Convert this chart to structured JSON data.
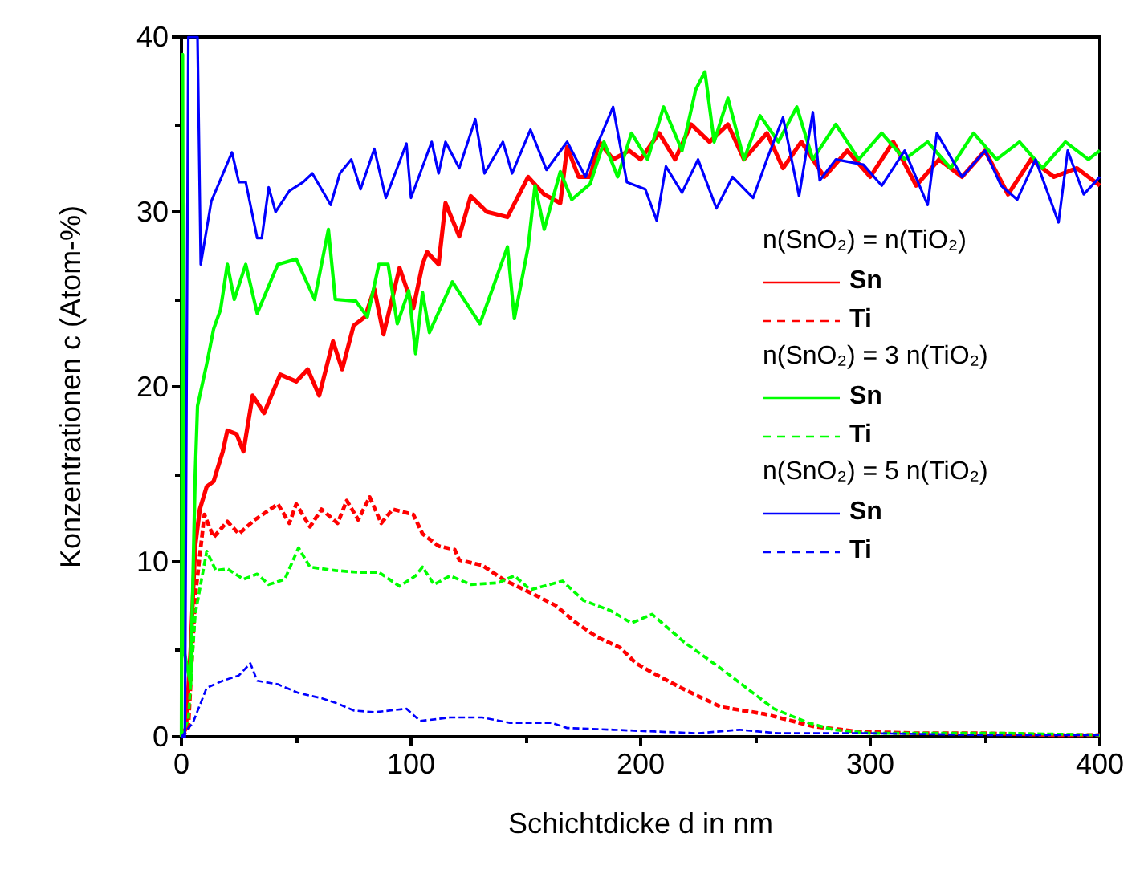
{
  "chart_data": {
    "type": "line",
    "xlabel": "Schichtdicke d in nm",
    "ylabel": "Konzentrationen c (Atom-%)",
    "xlim": [
      0,
      400
    ],
    "xticks": [
      0,
      100,
      200,
      300,
      400
    ],
    "ylim": [
      0,
      40
    ],
    "yticks": [
      0,
      10,
      20,
      30,
      40
    ],
    "grid": false,
    "legend": "right",
    "marker": "none",
    "annotations": [
      "n(SnO₂) = n(TiO₂)",
      "n(SnO₂) = 3 n(TiO₂)",
      "n(SnO₂) = 5 n(TiO₂)"
    ],
    "series": [
      {
        "name": "Sn",
        "color": "#ff0000",
        "line_style": "solid",
        "x": [
          0,
          2,
          4,
          6,
          8,
          11,
          14,
          18,
          20,
          24,
          27,
          31,
          36,
          43,
          50,
          55,
          60,
          66,
          70,
          75,
          80,
          84,
          88,
          95,
          101,
          105,
          107,
          112,
          115,
          121,
          126,
          133,
          142,
          151,
          158,
          165,
          168,
          173,
          178,
          182,
          188,
          195,
          200,
          208,
          215,
          222,
          230,
          238,
          245,
          255,
          262,
          270,
          280,
          290,
          300,
          310,
          320,
          330,
          340,
          350,
          360,
          370,
          380,
          390,
          400
        ],
        "values": [
          0,
          0.5,
          5,
          10.9,
          13,
          14.3,
          14.6,
          16.3,
          17.5,
          17.3,
          16.3,
          19.5,
          18.5,
          20.7,
          20.3,
          21,
          19.5,
          22.6,
          21,
          23.5,
          24,
          25.6,
          23,
          26.8,
          24.5,
          27,
          27.7,
          27,
          30.5,
          28.6,
          30.9,
          30,
          29.7,
          32,
          31,
          30.5,
          33.7,
          32,
          32,
          34,
          33,
          33.5,
          33,
          34.5,
          33,
          35,
          34,
          35,
          33,
          34.5,
          32.5,
          34,
          32,
          33.5,
          32,
          34,
          31.5,
          33,
          32,
          33.5,
          31,
          33,
          32,
          32.5,
          31.5
        ]
      },
      {
        "name": "Ti",
        "color": "#ff0000",
        "line_style": "dashed",
        "x": [
          0,
          3,
          6,
          10,
          14,
          20,
          25,
          32,
          42,
          47,
          50,
          56,
          61,
          68,
          72,
          77,
          82,
          87,
          92,
          101,
          105,
          112,
          119,
          121,
          131,
          140,
          154,
          163,
          172,
          181,
          191,
          198,
          206,
          219,
          235,
          254,
          275,
          294,
          320,
          350,
          380,
          400
        ],
        "values": [
          0,
          0.5,
          8,
          12.7,
          11.4,
          12.3,
          11.6,
          12.4,
          13.3,
          12.2,
          13.3,
          12,
          13,
          12.2,
          13.5,
          12.4,
          13.7,
          12.2,
          13,
          12.7,
          11.6,
          10.9,
          10.7,
          10.1,
          9.8,
          9,
          8.1,
          7.5,
          6.5,
          5.7,
          5.1,
          4.2,
          3.6,
          2.7,
          1.7,
          1.3,
          0.6,
          0.3,
          0.2,
          0.2,
          0.1,
          0.1
        ]
      },
      {
        "name": "Sn",
        "color": "#00ff00",
        "line_style": "solid",
        "x": [
          0,
          0.5,
          1,
          4,
          6,
          7,
          11,
          14,
          17,
          20,
          23,
          28,
          33,
          42,
          50,
          58,
          61,
          64,
          67,
          76,
          81,
          86,
          90,
          94,
          99,
          102,
          105,
          108,
          118,
          130,
          142,
          145,
          151,
          154,
          158,
          165,
          170,
          178,
          184,
          190,
          196,
          203,
          210,
          218,
          224,
          228,
          232,
          238,
          245,
          252,
          260,
          268,
          275,
          285,
          295,
          305,
          315,
          325,
          335,
          345,
          355,
          365,
          375,
          385,
          395,
          400
        ],
        "values": [
          0,
          39,
          5,
          3,
          15,
          18.9,
          21.3,
          23.3,
          24.4,
          27,
          25,
          27,
          24.2,
          27,
          27.3,
          25,
          27,
          29,
          25,
          24.9,
          24,
          27,
          27,
          23.6,
          25.5,
          21.9,
          25.4,
          23.1,
          26,
          23.6,
          28,
          23.9,
          28,
          31.5,
          29,
          32.3,
          30.7,
          31.6,
          34,
          32,
          34.5,
          33,
          36,
          33.5,
          37,
          38,
          34,
          36.5,
          33,
          35.5,
          34,
          36,
          33,
          35,
          33,
          34.5,
          33,
          34,
          32.5,
          34.5,
          33,
          34,
          32.5,
          34,
          33,
          33.5
        ]
      },
      {
        "name": "Ti",
        "color": "#00ff00",
        "line_style": "dashed",
        "x": [
          0,
          3,
          6,
          11,
          15,
          20,
          27,
          33,
          38,
          45,
          51,
          56,
          67,
          77,
          86,
          95,
          102,
          105,
          110,
          117,
          126,
          138,
          145,
          152,
          166,
          175,
          187,
          196,
          205,
          219,
          235,
          247,
          258,
          273,
          284,
          300,
          330,
          360,
          400
        ],
        "values": [
          0,
          1,
          7,
          10.6,
          9.5,
          9.6,
          9,
          9.3,
          8.7,
          9,
          10.8,
          9.7,
          9.5,
          9.4,
          9.4,
          8.6,
          9.2,
          9.7,
          8.7,
          9.2,
          8.7,
          8.8,
          9.2,
          8.4,
          8.9,
          7.8,
          7.2,
          6.5,
          7,
          5.4,
          3.9,
          2.7,
          1.6,
          0.8,
          0.4,
          0.2,
          0.2,
          0.2,
          0.1
        ]
      },
      {
        "name": "Sn",
        "color": "#0000ff",
        "line_style": "solid",
        "x": [
          0,
          1.5,
          3,
          7,
          8.4,
          13,
          22,
          25,
          28,
          33,
          35,
          38,
          41,
          47,
          53,
          57,
          65,
          69,
          74,
          78,
          84,
          89,
          98,
          100,
          109,
          112,
          115,
          121,
          128,
          132,
          140,
          144,
          152,
          159,
          168,
          176,
          180,
          188,
          194,
          202,
          207,
          211,
          218,
          225,
          233,
          240,
          249,
          255,
          262,
          269,
          275,
          278,
          285,
          297,
          305,
          315,
          325,
          329,
          340,
          350,
          357,
          364,
          372,
          382,
          386,
          393,
          400
        ],
        "values": [
          0,
          0,
          40,
          40,
          27,
          30.6,
          33.4,
          31.7,
          31.7,
          28.5,
          28.5,
          31.4,
          30,
          31.2,
          31.7,
          32.2,
          30.4,
          32.2,
          33,
          31.3,
          33.6,
          30.8,
          33.9,
          30.8,
          34,
          32.2,
          34,
          32.5,
          35.3,
          32.2,
          34,
          32.2,
          34.7,
          32.4,
          34,
          32,
          33.5,
          36,
          31.7,
          31.3,
          29.5,
          32.6,
          31.1,
          33,
          30.2,
          32,
          30.8,
          33,
          35.4,
          30.9,
          35.7,
          31.8,
          33,
          32.7,
          31.5,
          33.5,
          30.4,
          34.5,
          32,
          33.5,
          31.5,
          30.7,
          33,
          29.4,
          33.5,
          31,
          32
        ]
      },
      {
        "name": "Ti",
        "color": "#0000ff",
        "line_style": "dashed",
        "x": [
          0,
          5,
          11,
          18,
          25,
          30,
          33,
          42,
          51,
          61,
          68,
          75,
          84,
          98,
          104,
          117,
          131,
          143,
          161,
          168,
          188,
          206,
          225,
          243,
          260,
          300,
          350,
          400
        ],
        "values": [
          0,
          0.8,
          2.8,
          3.2,
          3.5,
          4.2,
          3.2,
          3,
          2.5,
          2.2,
          1.9,
          1.5,
          1.4,
          1.6,
          0.9,
          1.1,
          1.1,
          0.8,
          0.8,
          0.5,
          0.4,
          0.3,
          0.2,
          0.4,
          0.2,
          0.2,
          0.1,
          0.1
        ]
      }
    ]
  }
}
